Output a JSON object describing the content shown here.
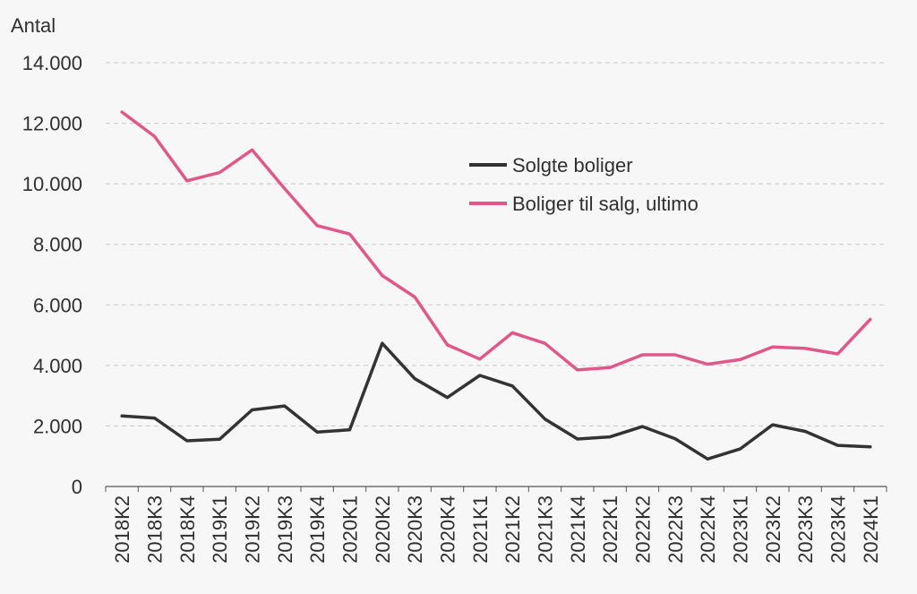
{
  "chart_data": {
    "type": "line",
    "ylabel": "Antal",
    "ylim": [
      0,
      14000
    ],
    "yticks": [
      0,
      2000,
      4000,
      6000,
      8000,
      10000,
      12000,
      14000
    ],
    "ytick_labels": [
      "0",
      "2.000",
      "4.000",
      "6.000",
      "8.000",
      "10.000",
      "12.000",
      "14.000"
    ],
    "grid": "horizontal-dashed",
    "legend_placement": "upper-middle",
    "categories": [
      "2018K2",
      "2018K3",
      "2018K4",
      "2019K1",
      "2019K2",
      "2019K3",
      "2019K4",
      "2020K1",
      "2020K2",
      "2020K3",
      "2020K4",
      "2021K1",
      "2021K2",
      "2021K3",
      "2021K4",
      "2022K1",
      "2022K2",
      "2022K3",
      "2022K4",
      "2023K1",
      "2023K2",
      "2023K3",
      "2023K4",
      "2024K1"
    ],
    "series": [
      {
        "name": "Solgte boliger",
        "color": "#333333",
        "values": [
          2330,
          2260,
          1510,
          1560,
          2530,
          2660,
          1800,
          1870,
          4730,
          3560,
          2940,
          3670,
          3320,
          2230,
          1570,
          1640,
          1980,
          1580,
          910,
          1240,
          2040,
          1820,
          1360,
          1310
        ]
      },
      {
        "name": "Boliger til salg, ultimo",
        "color": "#e0578a",
        "values": [
          12370,
          11570,
          10100,
          10370,
          11120,
          9840,
          8620,
          8340,
          6970,
          6260,
          4680,
          4210,
          5080,
          4730,
          3850,
          3930,
          4350,
          4350,
          4040,
          4190,
          4610,
          4560,
          4380,
          5520
        ]
      }
    ]
  }
}
